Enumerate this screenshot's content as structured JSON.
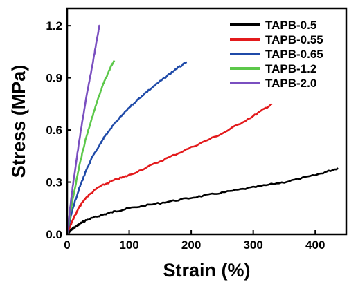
{
  "chart_data": {
    "type": "line",
    "xlabel": "Strain (%)",
    "ylabel": "Stress (MPa)",
    "xlim": [
      0,
      450
    ],
    "ylim": [
      0,
      1.3
    ],
    "xticks": [
      0,
      100,
      200,
      300,
      400
    ],
    "yticks": [
      0.0,
      0.3,
      0.6,
      0.9,
      1.2
    ],
    "xtick_labels": [
      "0",
      "100",
      "200",
      "300",
      "400"
    ],
    "ytick_labels": [
      "0.0",
      "0.3",
      "0.6",
      "0.9",
      "1.2"
    ],
    "grid": false,
    "legend_position": "top-right",
    "series": [
      {
        "name": "TAPB-0.5",
        "color": "#000000",
        "x": [
          0,
          5,
          10,
          20,
          30,
          50,
          75,
          100,
          150,
          200,
          250,
          300,
          350,
          400,
          437
        ],
        "y": [
          0,
          0.02,
          0.035,
          0.06,
          0.08,
          0.105,
          0.13,
          0.15,
          0.18,
          0.21,
          0.24,
          0.27,
          0.3,
          0.34,
          0.38
        ]
      },
      {
        "name": "TAPB-0.55",
        "color": "#e31a1c",
        "x": [
          0,
          5,
          10,
          20,
          30,
          50,
          75,
          100,
          150,
          200,
          250,
          300,
          330
        ],
        "y": [
          0,
          0.05,
          0.09,
          0.16,
          0.21,
          0.27,
          0.31,
          0.34,
          0.42,
          0.5,
          0.58,
          0.68,
          0.75
        ]
      },
      {
        "name": "TAPB-0.65",
        "color": "#1f4aa8",
        "x": [
          0,
          5,
          10,
          20,
          30,
          40,
          50,
          60,
          75,
          100,
          125,
          150,
          175,
          193
        ],
        "y": [
          0,
          0.09,
          0.16,
          0.27,
          0.36,
          0.44,
          0.5,
          0.56,
          0.63,
          0.73,
          0.81,
          0.88,
          0.95,
          0.99
        ]
      },
      {
        "name": "TAPB-1.2",
        "color": "#5cc84a",
        "x": [
          0,
          5,
          10,
          20,
          30,
          40,
          50,
          60,
          70,
          76
        ],
        "y": [
          0,
          0.12,
          0.22,
          0.4,
          0.55,
          0.67,
          0.78,
          0.88,
          0.96,
          1.0
        ]
      },
      {
        "name": "TAPB-2.0",
        "color": "#7a4fc0",
        "x": [
          0,
          5,
          10,
          20,
          30,
          40,
          50,
          52
        ],
        "y": [
          0,
          0.16,
          0.3,
          0.55,
          0.77,
          0.96,
          1.16,
          1.2
        ]
      }
    ]
  }
}
